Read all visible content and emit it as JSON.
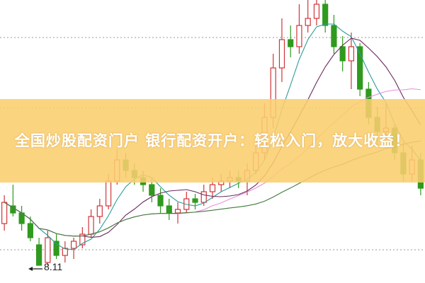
{
  "banner": {
    "text": "全国炒股配资门户 银行配资开户：轻松入门，放大收益！"
  },
  "chart_data": {
    "type": "candlestick",
    "title": "",
    "low_annotation": "8.11",
    "reference_lines": [
      11.33,
      10.33,
      8.33
    ],
    "ylim": [
      8.0,
      11.86
    ],
    "colors": {
      "up": "#d0343a",
      "down": "#2f9a1e",
      "ma5": "#2a9d9a",
      "ma10": "#6a2a5a",
      "ma20": "#e58fe0",
      "ma60": "#3f7a3a",
      "grid": "#999999"
    },
    "moving_averages": [
      "MA5",
      "MA10",
      "MA20",
      "MA60"
    ],
    "candles": [
      [
        8.7,
        9.1,
        8.6,
        9.0
      ],
      [
        8.95,
        9.25,
        8.8,
        8.85
      ],
      [
        8.85,
        8.95,
        8.6,
        8.7
      ],
      [
        8.7,
        8.8,
        8.45,
        8.5
      ],
      [
        8.4,
        8.5,
        8.11,
        8.11
      ],
      [
        8.15,
        8.6,
        8.11,
        8.5
      ],
      [
        8.45,
        8.55,
        8.2,
        8.25
      ],
      [
        8.25,
        8.45,
        8.15,
        8.35
      ],
      [
        8.35,
        8.5,
        8.2,
        8.45
      ],
      [
        8.4,
        8.65,
        8.35,
        8.55
      ],
      [
        8.55,
        8.9,
        8.5,
        8.8
      ],
      [
        8.8,
        9.05,
        8.7,
        8.95
      ],
      [
        8.95,
        9.4,
        8.9,
        9.3
      ],
      [
        9.3,
        9.75,
        9.25,
        9.6
      ],
      [
        9.6,
        9.7,
        9.35,
        9.45
      ],
      [
        9.45,
        9.55,
        9.25,
        9.35
      ],
      [
        9.35,
        9.45,
        9.15,
        9.25
      ],
      [
        9.25,
        9.35,
        9.0,
        9.1
      ],
      [
        9.1,
        9.2,
        8.85,
        8.95
      ],
      [
        8.95,
        9.05,
        8.75,
        8.85
      ],
      [
        8.85,
        9.0,
        8.7,
        8.9
      ],
      [
        8.9,
        9.15,
        8.85,
        9.05
      ],
      [
        9.05,
        9.12,
        8.9,
        9.0
      ],
      [
        9.0,
        9.25,
        8.95,
        9.15
      ],
      [
        9.15,
        9.35,
        9.05,
        9.25
      ],
      [
        9.25,
        9.4,
        9.15,
        9.3
      ],
      [
        9.3,
        9.45,
        9.2,
        9.35
      ],
      [
        9.35,
        9.45,
        9.2,
        9.3
      ],
      [
        9.3,
        9.55,
        9.1,
        9.45
      ],
      [
        9.45,
        9.85,
        9.4,
        9.7
      ],
      [
        9.7,
        10.4,
        9.6,
        10.2
      ],
      [
        10.2,
        11.1,
        10.05,
        10.9
      ],
      [
        10.9,
        11.6,
        10.7,
        11.3
      ],
      [
        11.3,
        11.5,
        11.05,
        11.2
      ],
      [
        11.2,
        11.8,
        11.1,
        11.5
      ],
      [
        11.5,
        11.86,
        11.4,
        11.6
      ],
      [
        11.6,
        11.86,
        11.5,
        11.8
      ],
      [
        11.8,
        11.86,
        11.4,
        11.5
      ],
      [
        11.5,
        11.65,
        11.1,
        11.2
      ],
      [
        11.2,
        11.35,
        10.85,
        11.0
      ],
      [
        11.0,
        11.4,
        10.6,
        11.2
      ],
      [
        11.2,
        11.25,
        10.5,
        10.6
      ],
      [
        10.6,
        10.7,
        10.1,
        10.2
      ],
      [
        10.2,
        10.35,
        9.8,
        10.0
      ],
      [
        10.0,
        10.4,
        9.85,
        10.05
      ],
      [
        10.05,
        10.1,
        9.6,
        9.7
      ],
      [
        9.7,
        9.85,
        9.3,
        9.4
      ],
      [
        9.4,
        9.8,
        9.3,
        9.6
      ],
      [
        9.6,
        9.7,
        9.1,
        9.2
      ]
    ]
  }
}
